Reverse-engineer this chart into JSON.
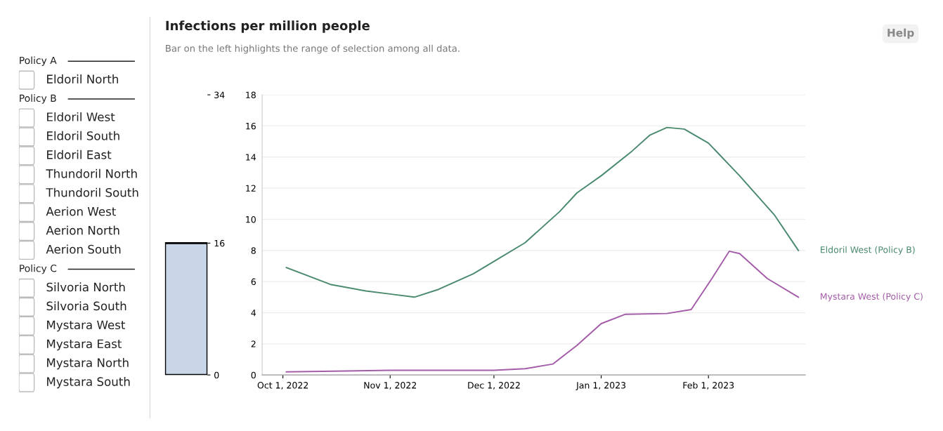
{
  "chart_data": [
    {
      "type": "other",
      "annotations": [
        "Policy A",
        "Eldoril North",
        "Policy B",
        "Eldoril West",
        "Eldoril South",
        "Eldoril East",
        "Thundoril North",
        "Thundoril South",
        "Aerion West",
        "Aerion North",
        "Aerion South",
        "Policy C",
        "Silvoria North",
        "Silvoria South",
        "Mystara West",
        "Mystara East",
        "Mystara North",
        "Mystara South"
      ]
    },
    {
      "type": "bar",
      "categories": [
        null
      ],
      "base": [
        0
      ],
      "values": [
        16
      ],
      "color": "#c9d6e8",
      "ylim": [
        0,
        34
      ],
      "yticks": [
        0,
        16,
        34
      ]
    },
    {
      "type": "line",
      "title": "Infections per million people",
      "subtitle": "Bar on the left highlights the range of selection among all data.",
      "xlim": [
        "2022-09-25",
        "2023-03-01"
      ],
      "xticks": [
        {
          "value": "2022-10-01",
          "label": "Oct 1, 2022"
        },
        {
          "value": "2022-11-01",
          "label": "Nov 1, 2022"
        },
        {
          "value": "2022-12-01",
          "label": "Dec 1, 2022"
        },
        {
          "value": "2023-01-01",
          "label": "Jan 1, 2023"
        },
        {
          "value": "2023-02-01",
          "label": "Feb 1, 2023"
        }
      ],
      "ylim": [
        0,
        18
      ],
      "yticks": [
        0,
        2,
        4,
        6,
        8,
        10,
        12,
        14,
        16,
        18
      ],
      "grid": "y",
      "legend": false,
      "marker": "none",
      "line_style": "solid",
      "annotations": [
        "Help"
      ],
      "series": [
        {
          "name": "Eldoril West (Policy B)",
          "color": "#4a8a6e",
          "x": [
            "2022-10-02",
            "2022-10-15",
            "2022-10-25",
            "2022-11-01",
            "2022-11-08",
            "2022-11-15",
            "2022-11-25",
            "2022-12-01",
            "2022-12-10",
            "2022-12-20",
            "2022-12-25",
            "2023-01-01",
            "2023-01-10",
            "2023-01-15",
            "2023-01-20",
            "2023-01-25",
            "2023-02-01",
            "2023-02-10",
            "2023-02-20",
            "2023-02-27"
          ],
          "values": [
            6.9,
            5.8,
            5.4,
            5.2,
            5.0,
            5.5,
            6.5,
            7.3,
            8.5,
            10.5,
            11.7,
            12.8,
            14.4,
            15.4,
            15.9,
            15.8,
            14.9,
            12.8,
            10.3,
            8.0
          ]
        },
        {
          "name": "Mystara West (Policy C)",
          "color": "#a45ca8",
          "x": [
            "2022-10-02",
            "2022-11-01",
            "2022-12-01",
            "2022-12-10",
            "2022-12-18",
            "2022-12-25",
            "2023-01-01",
            "2023-01-08",
            "2023-01-20",
            "2023-01-27",
            "2023-02-02",
            "2023-02-07",
            "2023-02-10",
            "2023-02-18",
            "2023-02-27"
          ],
          "values": [
            0.2,
            0.3,
            0.3,
            0.4,
            0.7,
            1.9,
            3.3,
            3.9,
            3.95,
            4.2,
            6.2,
            7.95,
            7.8,
            6.2,
            5.0
          ]
        }
      ]
    }
  ]
}
